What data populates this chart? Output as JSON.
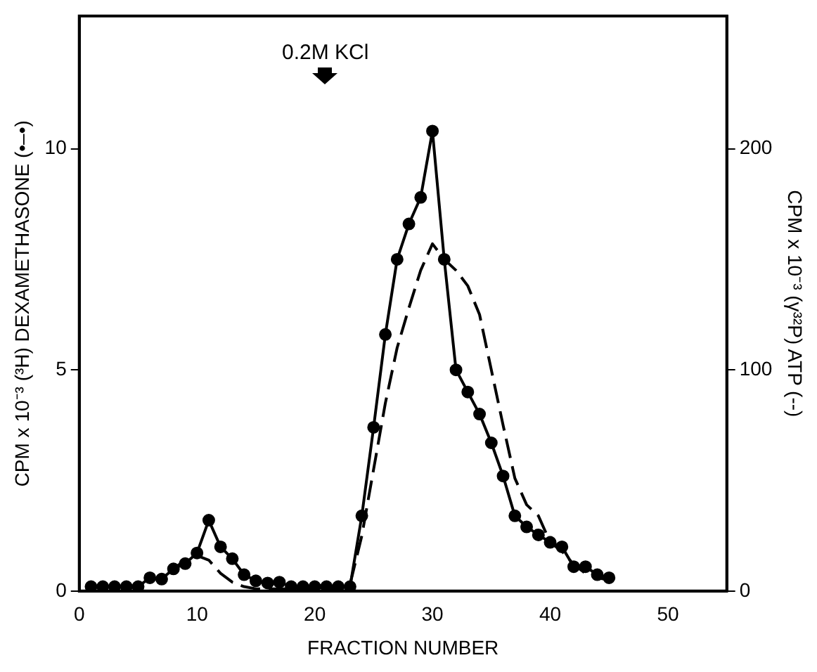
{
  "chart_data": {
    "type": "line",
    "xlabel": "FRACTION NUMBER",
    "ylabel": "CPM x 10⁻³ (³H) DEXAMETHASONE (•–•)",
    "y2label": "CPM x 10⁻³ (γ³²P) ATP (--)",
    "x": [
      1,
      2,
      3,
      4,
      5,
      6,
      7,
      8,
      9,
      10,
      11,
      12,
      13,
      14,
      15,
      16,
      17,
      18,
      19,
      20,
      21,
      22,
      23,
      24,
      25,
      26,
      27,
      28,
      29,
      30,
      31,
      32,
      33,
      34,
      35,
      36,
      37,
      38,
      39,
      40,
      41,
      42,
      43,
      44,
      45
    ],
    "series": [
      {
        "color": "#000000",
        "marker": "circle",
        "line_style": "solid",
        "values": [
          0.1,
          0.1,
          0.1,
          0.1,
          0.1,
          0.3,
          0.27,
          0.5,
          0.62,
          0.86,
          1.6,
          1.0,
          0.73,
          0.37,
          0.23,
          0.18,
          0.2,
          0.1,
          0.1,
          0.1,
          0.1,
          0.1,
          0.1,
          1.7,
          3.7,
          5.8,
          7.5,
          8.3,
          8.9,
          10.4,
          7.5,
          5.0,
          4.5,
          4.0,
          3.35,
          2.6,
          1.7,
          1.45,
          1.27,
          1.1,
          1.0,
          0.55,
          0.55,
          0.37,
          0.3
        ]
      },
      {
        "color": "#000000",
        "marker": "none",
        "line_style": "dashed",
        "axis": "y2",
        "values": [
          2,
          2,
          2,
          2,
          2,
          5,
          6,
          10,
          14,
          16,
          14,
          8,
          4,
          2,
          1,
          1,
          1,
          1,
          1,
          1,
          1,
          1,
          3,
          25,
          55,
          85,
          110,
          128,
          145,
          157,
          150,
          145,
          138,
          125,
          100,
          75,
          51,
          39,
          34,
          22,
          18,
          12,
          8,
          6,
          5
        ]
      }
    ],
    "annotations": [
      "0.2M KCl"
    ],
    "xlim": [
      0,
      55
    ],
    "xticks": [
      0,
      10,
      20,
      30,
      40,
      50
    ],
    "ylim": [
      0,
      13
    ],
    "yticks": [
      0,
      5,
      10
    ],
    "y2lim": [
      0,
      260
    ],
    "y2ticks": [
      0,
      100,
      200
    ],
    "grid": false,
    "legend": false
  }
}
